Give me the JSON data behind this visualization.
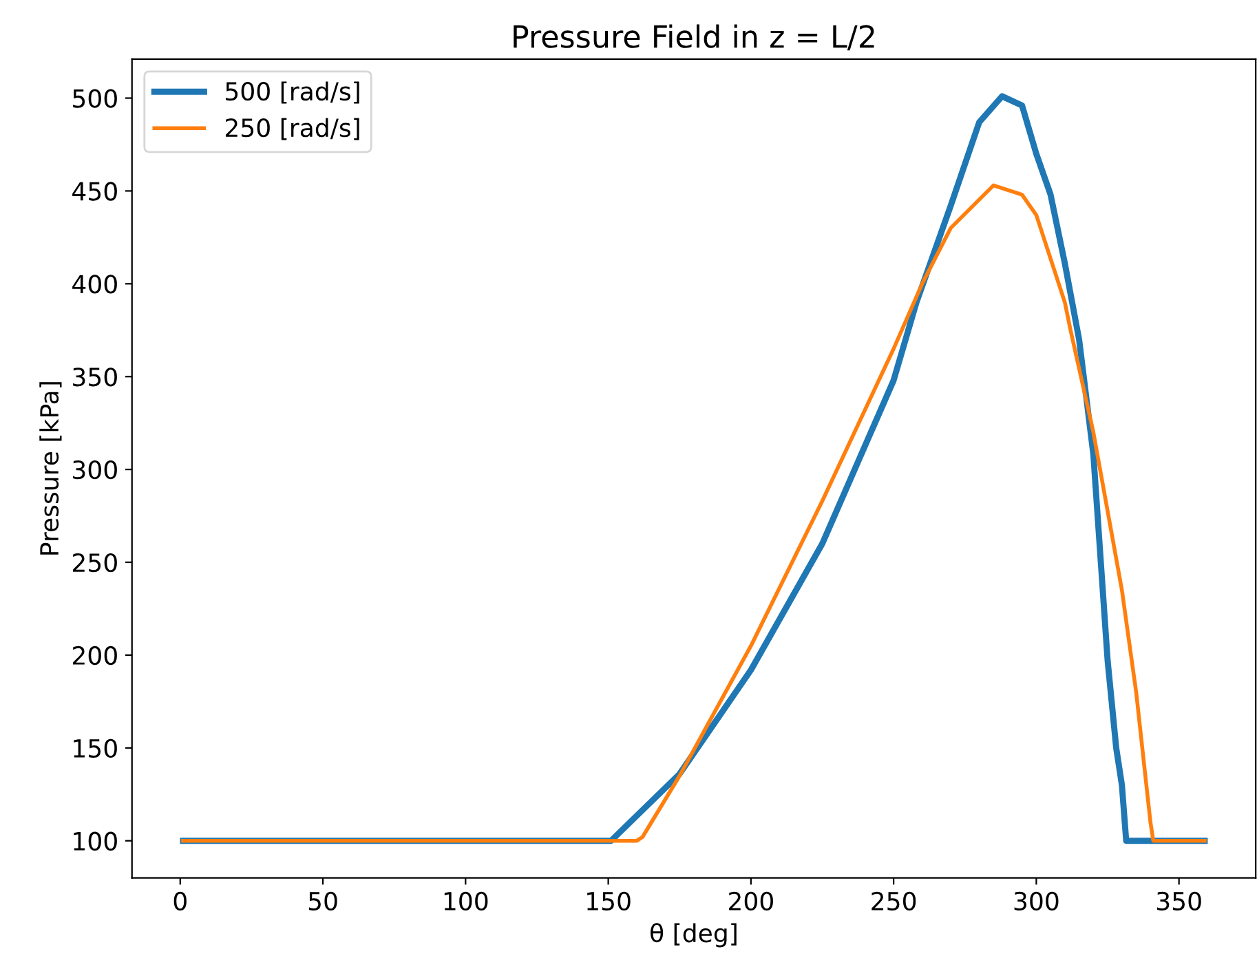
{
  "chart_data": {
    "type": "line",
    "title": "Pressure Field in z = L/2",
    "xlabel": "θ [deg]",
    "ylabel": "Pressure [kPa]",
    "xlim": [
      -16.9,
      376.9
    ],
    "ylim": [
      80,
      521
    ],
    "xticks": [
      0,
      50,
      100,
      150,
      200,
      250,
      300,
      350
    ],
    "yticks": [
      100,
      150,
      200,
      250,
      300,
      350,
      400,
      450,
      500
    ],
    "grid": false,
    "legend": "top left",
    "series": [
      {
        "name": "500 [rad/s]",
        "color": "#1f77b4",
        "x": [
          1,
          151,
          175,
          200,
          225,
          250,
          258,
          270,
          280,
          288,
          295,
          300,
          305,
          310,
          315,
          320,
          325,
          328,
          330,
          331.5,
          359
        ],
        "values": [
          100,
          100,
          136,
          192,
          260,
          348,
          390,
          442,
          487,
          501,
          496,
          470,
          448,
          411,
          370,
          308,
          197,
          150,
          130,
          100,
          100
        ]
      },
      {
        "name": "250 [rad/s]",
        "color": "#ff7f0e",
        "x": [
          1,
          160,
          162,
          175,
          200,
          225,
          250,
          260,
          270,
          285,
          295,
          300,
          310,
          312,
          320,
          330,
          335,
          340,
          341,
          359
        ],
        "values": [
          100,
          100,
          102,
          135,
          205,
          283,
          365,
          400,
          430,
          453,
          448,
          437,
          390,
          375,
          320,
          235,
          180,
          110,
          100,
          100
        ]
      }
    ]
  }
}
